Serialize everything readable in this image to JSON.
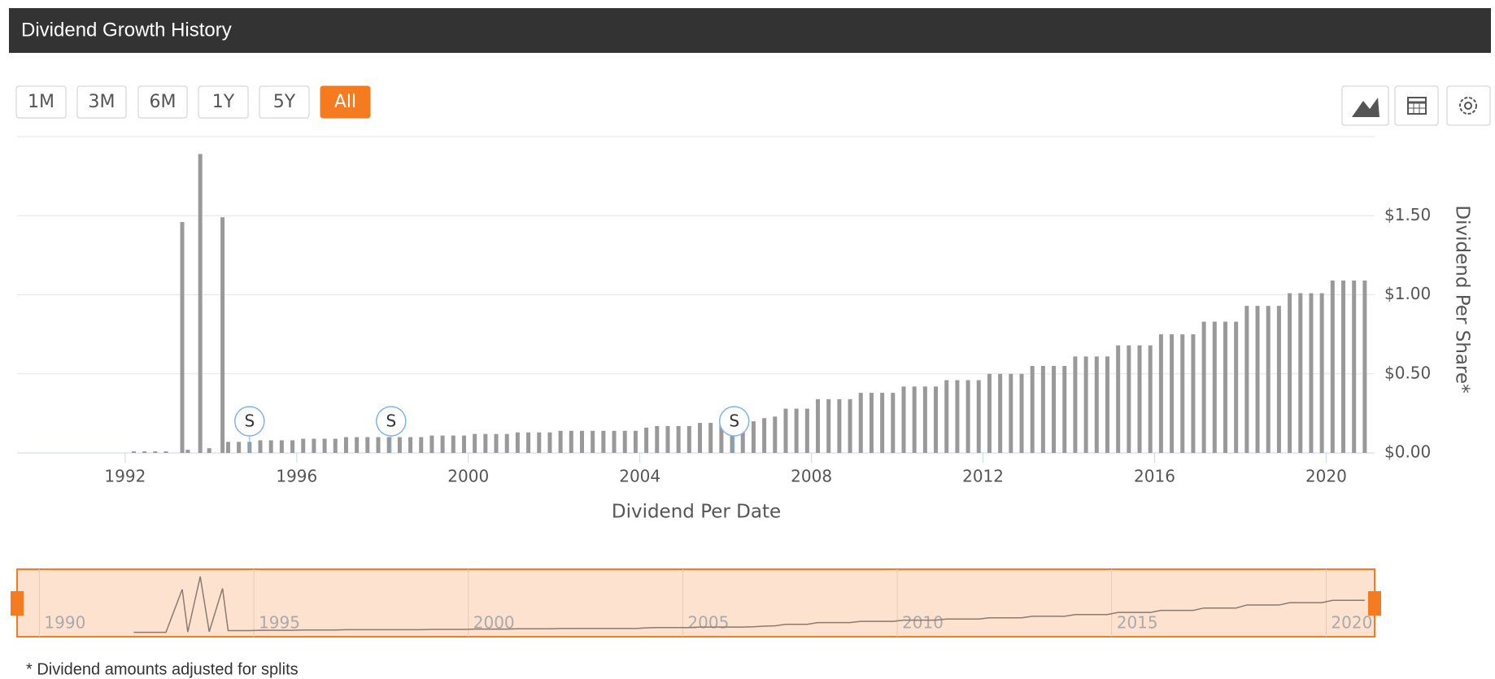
{
  "chart_data": {
    "type": "bar",
    "title": "Dividend Growth History",
    "range_buttons": [
      {
        "label": "1M",
        "active": false
      },
      {
        "label": "3M",
        "active": false
      },
      {
        "label": "6M",
        "active": false
      },
      {
        "label": "1Y",
        "active": false
      },
      {
        "label": "5Y",
        "active": false
      },
      {
        "label": "All",
        "active": true
      }
    ],
    "x_label": "Dividend Per Date",
    "y_label": "Dividend Per Share*",
    "footnote": "* Dividend amounts adjusted for splits",
    "color": "#999999",
    "accent_color": "#f47b20",
    "grid": true,
    "xlim": [
      1989.48,
      2021.13
    ],
    "xticks": [
      1992,
      1996,
      2000,
      2004,
      2008,
      2012,
      2016,
      2020
    ],
    "ylim": [
      0,
      2.0
    ],
    "yticks": [
      {
        "value": 0,
        "label": "$0.00"
      },
      {
        "value": 0.5,
        "label": "$0.50"
      },
      {
        "value": 1,
        "label": "$1.00"
      },
      {
        "value": 1.5,
        "label": "$1.50"
      }
    ],
    "navigator_xticks": [
      1990,
      1995,
      2000,
      2005,
      2010,
      2015,
      2020
    ],
    "split_flags": [
      {
        "x": 1994.9,
        "label": "S"
      },
      {
        "x": 1998.2,
        "label": "S"
      },
      {
        "x": 2006.2,
        "label": "S"
      }
    ],
    "x": [
      1992.2,
      1992.45,
      1992.7,
      1992.95,
      1993.33,
      1993.46,
      1993.75,
      1993.96,
      1994.27,
      1994.4,
      1994.65,
      1994.9,
      1995.15,
      1995.4,
      1995.65,
      1995.9,
      1996.15,
      1996.4,
      1996.65,
      1996.9,
      1997.15,
      1997.4,
      1997.65,
      1997.9,
      1998.15,
      1998.4,
      1998.65,
      1998.9,
      1999.15,
      1999.4,
      1999.65,
      1999.9,
      2000.15,
      2000.4,
      2000.65,
      2000.9,
      2001.15,
      2001.4,
      2001.65,
      2001.9,
      2002.15,
      2002.4,
      2002.65,
      2002.9,
      2003.15,
      2003.4,
      2003.65,
      2003.9,
      2004.15,
      2004.4,
      2004.65,
      2004.9,
      2005.15,
      2005.4,
      2005.65,
      2005.9,
      2006.15,
      2006.4,
      2006.65,
      2006.9,
      2007.15,
      2007.4,
      2007.65,
      2007.9,
      2008.15,
      2008.4,
      2008.65,
      2008.9,
      2009.15,
      2009.4,
      2009.65,
      2009.9,
      2010.15,
      2010.4,
      2010.65,
      2010.9,
      2011.15,
      2011.4,
      2011.65,
      2011.9,
      2012.15,
      2012.4,
      2012.65,
      2012.9,
      2013.15,
      2013.4,
      2013.65,
      2013.9,
      2014.15,
      2014.4,
      2014.65,
      2014.9,
      2015.15,
      2015.4,
      2015.65,
      2015.9,
      2016.15,
      2016.4,
      2016.65,
      2016.9,
      2017.15,
      2017.4,
      2017.65,
      2017.9,
      2018.15,
      2018.4,
      2018.65,
      2018.9,
      2019.15,
      2019.4,
      2019.65,
      2019.9,
      2020.15,
      2020.4,
      2020.65,
      2020.9
    ],
    "values": [
      0.01,
      0.01,
      0.01,
      0.01,
      1.46,
      0.02,
      1.89,
      0.03,
      1.49,
      0.07,
      0.07,
      0.07,
      0.08,
      0.08,
      0.08,
      0.08,
      0.09,
      0.09,
      0.09,
      0.09,
      0.1,
      0.1,
      0.1,
      0.1,
      0.1,
      0.1,
      0.1,
      0.1,
      0.11,
      0.11,
      0.11,
      0.11,
      0.12,
      0.12,
      0.12,
      0.12,
      0.13,
      0.13,
      0.13,
      0.13,
      0.14,
      0.14,
      0.14,
      0.14,
      0.14,
      0.14,
      0.14,
      0.14,
      0.16,
      0.17,
      0.17,
      0.17,
      0.17,
      0.19,
      0.19,
      0.19,
      0.19,
      0.19,
      0.2,
      0.22,
      0.23,
      0.28,
      0.28,
      0.28,
      0.34,
      0.34,
      0.34,
      0.34,
      0.38,
      0.38,
      0.38,
      0.38,
      0.42,
      0.42,
      0.42,
      0.42,
      0.46,
      0.46,
      0.46,
      0.46,
      0.5,
      0.5,
      0.5,
      0.5,
      0.55,
      0.55,
      0.55,
      0.55,
      0.61,
      0.61,
      0.61,
      0.61,
      0.68,
      0.68,
      0.68,
      0.68,
      0.75,
      0.75,
      0.75,
      0.75,
      0.83,
      0.83,
      0.83,
      0.83,
      0.93,
      0.93,
      0.93,
      0.93,
      1.01,
      1.01,
      1.01,
      1.01,
      1.09,
      1.09,
      1.09,
      1.09
    ]
  }
}
